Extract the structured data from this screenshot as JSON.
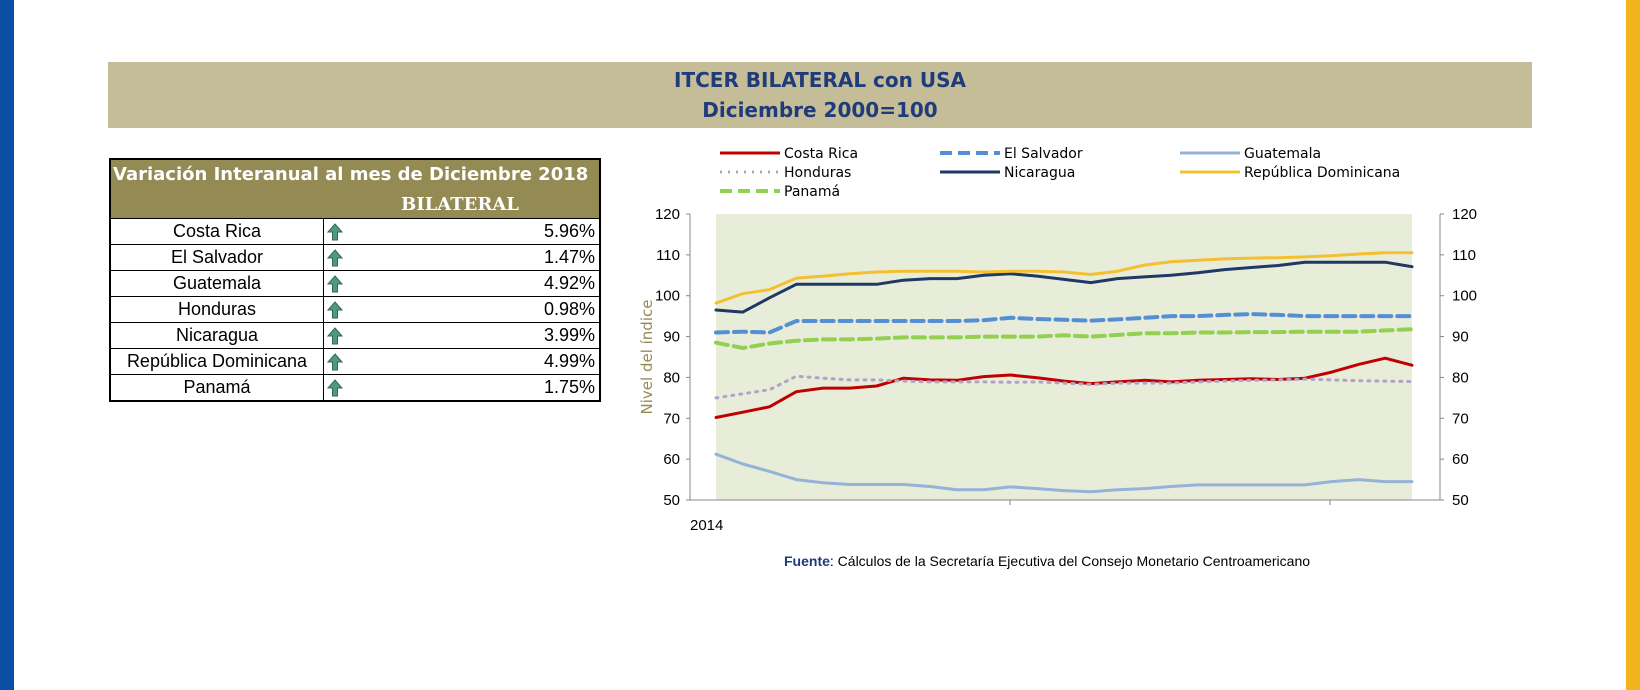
{
  "header": {
    "title": "ITCER BILATERAL con USA",
    "subtitle": "Diciembre 2000=100"
  },
  "variation_table": {
    "header_line1": "Variación Interanual al mes de Diciembre 2018",
    "header_line2": "BILATERAL",
    "rows": [
      {
        "country": "Costa Rica",
        "value": "5.96%",
        "icon": "up-arrow-icon"
      },
      {
        "country": "El Salvador",
        "value": "1.47%",
        "icon": "up-arrow-icon"
      },
      {
        "country": "Guatemala",
        "value": "4.92%",
        "icon": "up-arrow-icon"
      },
      {
        "country": "Honduras",
        "value": "0.98%",
        "icon": "up-arrow-icon"
      },
      {
        "country": "Nicaragua",
        "value": "3.99%",
        "icon": "up-arrow-icon"
      },
      {
        "country": "República Dominicana",
        "value": "4.99%",
        "icon": "up-arrow-icon"
      },
      {
        "country": "Panamá",
        "value": "1.75%",
        "icon": "up-arrow-icon"
      }
    ]
  },
  "chart_data": {
    "type": "line",
    "title": "",
    "xlabel": "",
    "ylabel": "Nivel del índice",
    "x_tick_labels": [
      "2014"
    ],
    "ylim": [
      50,
      120
    ],
    "yticks": [
      50,
      60,
      70,
      80,
      90,
      100,
      110,
      120
    ],
    "grid": false,
    "legend_position": "top",
    "series": [
      {
        "name": "Costa Rica",
        "color": "#c00000",
        "dash": "solid",
        "values": [
          70.2,
          71.5,
          72.8,
          76.5,
          77.4,
          77.4,
          77.9,
          79.8,
          79.4,
          79.3,
          80.2,
          80.6,
          79.9,
          79.1,
          78.5,
          78.9,
          79.3,
          78.9,
          79.3,
          79.5,
          79.7,
          79.5,
          79.8,
          81.3,
          83.2,
          84.7,
          83.0
        ]
      },
      {
        "name": "El Salvador",
        "color": "#558ed5",
        "dash": "dash",
        "values": [
          91.0,
          91.2,
          91.0,
          93.8,
          93.8,
          93.8,
          93.8,
          93.8,
          93.8,
          93.8,
          94.0,
          94.6,
          94.3,
          94.1,
          93.9,
          94.2,
          94.6,
          95.0,
          95.0,
          95.3,
          95.5,
          95.3,
          95.0,
          95.0,
          95.0,
          95.0,
          95.0
        ]
      },
      {
        "name": "Guatemala",
        "color": "#95b3d7",
        "dash": "solid",
        "values": [
          61.2,
          58.8,
          57.0,
          55.0,
          54.2,
          53.8,
          53.8,
          53.8,
          53.3,
          52.5,
          52.5,
          53.2,
          52.8,
          52.3,
          52.0,
          52.5,
          52.8,
          53.3,
          53.7,
          53.7,
          53.7,
          53.7,
          53.7,
          54.5,
          55.0,
          54.5,
          54.5
        ]
      },
      {
        "name": "Honduras",
        "color": "#b3a2c7",
        "dash": "dot",
        "values": [
          75.0,
          76.0,
          77.0,
          80.3,
          79.8,
          79.4,
          79.4,
          79.1,
          78.9,
          78.9,
          78.9,
          78.8,
          78.9,
          78.6,
          78.3,
          78.6,
          78.6,
          78.6,
          78.9,
          79.1,
          79.3,
          79.4,
          79.6,
          79.4,
          79.2,
          79.1,
          79.0
        ]
      },
      {
        "name": "Nicaragua",
        "color": "#1f3864",
        "dash": "solid",
        "values": [
          96.5,
          96.0,
          99.5,
          102.8,
          102.8,
          102.8,
          102.8,
          103.8,
          104.2,
          104.2,
          105.0,
          105.4,
          104.8,
          104.0,
          103.2,
          104.2,
          104.6,
          105.0,
          105.6,
          106.4,
          106.9,
          107.4,
          108.2,
          108.2,
          108.2,
          108.2,
          107.1
        ]
      },
      {
        "name": "República Dominicana",
        "color": "#f5c030",
        "dash": "solid",
        "values": [
          98.2,
          100.5,
          101.5,
          104.3,
          104.8,
          105.4,
          105.8,
          106.0,
          106.0,
          106.0,
          105.8,
          106.0,
          106.0,
          105.8,
          105.2,
          106.0,
          107.5,
          108.3,
          108.7,
          109.0,
          109.2,
          109.3,
          109.5,
          109.8,
          110.2,
          110.5,
          110.5
        ]
      },
      {
        "name": "Panamá",
        "color": "#92d050",
        "dash": "dash",
        "values": [
          88.5,
          87.2,
          88.3,
          89.0,
          89.3,
          89.3,
          89.5,
          89.8,
          89.8,
          89.8,
          90.0,
          90.0,
          90.0,
          90.3,
          90.0,
          90.4,
          90.8,
          90.8,
          91.0,
          91.0,
          91.1,
          91.1,
          91.2,
          91.2,
          91.2,
          91.5,
          91.8
        ]
      }
    ]
  },
  "source": {
    "label": "Fuente",
    "text": ": Cálculos de la Secretaría Ejecutiva del Consejo Monetario Centroamericano"
  },
  "colors": {
    "title_band": "#c4bd97",
    "title_text": "#1f3b7a",
    "table_header": "#948a54",
    "plot_area": "#e8edda",
    "left_stripe": "#0b4ea2",
    "right_stripe": "#f2b41b"
  }
}
